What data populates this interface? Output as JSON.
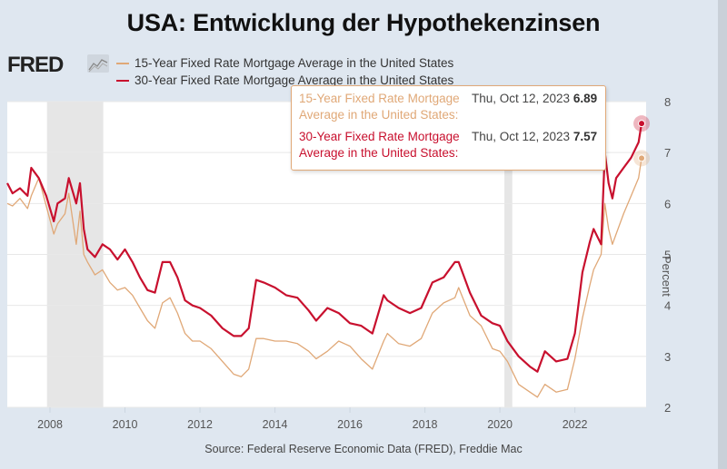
{
  "page_title": "USA: Entwicklung der Hypothekenzinsen",
  "brand": "FRED",
  "source": "Source: Federal Reserve Economic Data (FRED), Freddie Mac",
  "tooltip": {
    "rows": [
      {
        "label": "15-Year Fixed Rate Mortgage Average in the United States:",
        "date": "Thu, Oct 12, 2023",
        "value": "6.89",
        "color": "#e0a877"
      },
      {
        "label": "30-Year Fixed Rate Mortgage Average in the United States:",
        "date": "Thu, Oct 12, 2023",
        "value": "7.57",
        "color": "#c8102e"
      }
    ]
  },
  "chart_data": {
    "type": "line",
    "title": "USA: Entwicklung der Hypothekenzinsen",
    "xlabel": "",
    "ylabel": "Percent",
    "xlim": [
      2006.86,
      2023.9
    ],
    "ylim": [
      2,
      8
    ],
    "x_ticks": [
      "2008",
      "2010",
      "2012",
      "2014",
      "2016",
      "2018",
      "2020",
      "2022"
    ],
    "y_ticks": [
      "2",
      "3",
      "4",
      "5",
      "6",
      "7",
      "8"
    ],
    "grid": true,
    "legend_position": "top-left",
    "recessions": [
      [
        2007.92,
        2009.42
      ],
      [
        2020.12,
        2020.33
      ]
    ],
    "series": [
      {
        "name": "15-Year Fixed Rate Mortgage Average in the United States",
        "color": "#e0a877",
        "x": [
          2006.86,
          2007.0,
          2007.2,
          2007.4,
          2007.5,
          2007.7,
          2007.9,
          2008.1,
          2008.2,
          2008.4,
          2008.5,
          2008.7,
          2008.8,
          2008.9,
          2009.0,
          2009.2,
          2009.4,
          2009.6,
          2009.8,
          2010.0,
          2010.2,
          2010.4,
          2010.6,
          2010.8,
          2011.0,
          2011.2,
          2011.4,
          2011.6,
          2011.8,
          2012.0,
          2012.3,
          2012.6,
          2012.9,
          2013.1,
          2013.3,
          2013.5,
          2013.7,
          2014.0,
          2014.3,
          2014.6,
          2014.9,
          2015.1,
          2015.4,
          2015.7,
          2016.0,
          2016.3,
          2016.6,
          2016.9,
          2017.0,
          2017.3,
          2017.6,
          2017.9,
          2018.2,
          2018.5,
          2018.8,
          2018.9,
          2019.2,
          2019.5,
          2019.8,
          2020.0,
          2020.2,
          2020.5,
          2020.8,
          2021.0,
          2021.2,
          2021.5,
          2021.8,
          2022.0,
          2022.2,
          2022.4,
          2022.5,
          2022.7,
          2022.8,
          2022.9,
          2023.0,
          2023.1,
          2023.3,
          2023.5,
          2023.7,
          2023.78
        ],
        "values": [
          6.0,
          5.95,
          6.1,
          5.9,
          6.15,
          6.5,
          5.95,
          5.4,
          5.6,
          5.8,
          6.2,
          5.2,
          5.85,
          5.0,
          4.85,
          4.6,
          4.7,
          4.45,
          4.3,
          4.35,
          4.2,
          3.95,
          3.7,
          3.55,
          4.05,
          4.15,
          3.85,
          3.45,
          3.3,
          3.3,
          3.15,
          2.9,
          2.65,
          2.6,
          2.75,
          3.35,
          3.35,
          3.3,
          3.3,
          3.25,
          3.1,
          2.95,
          3.1,
          3.3,
          3.2,
          2.95,
          2.75,
          3.3,
          3.45,
          3.25,
          3.2,
          3.35,
          3.85,
          4.05,
          4.15,
          4.35,
          3.8,
          3.6,
          3.15,
          3.1,
          2.9,
          2.45,
          2.3,
          2.2,
          2.45,
          2.3,
          2.35,
          2.95,
          3.75,
          4.4,
          4.7,
          5.0,
          6.0,
          5.5,
          5.2,
          5.4,
          5.8,
          6.15,
          6.5,
          6.89
        ]
      },
      {
        "name": "30-Year Fixed Rate Mortgage Average in the United States",
        "color": "#c8102e",
        "x": [
          2006.86,
          2007.0,
          2007.2,
          2007.4,
          2007.5,
          2007.7,
          2007.9,
          2008.1,
          2008.2,
          2008.4,
          2008.5,
          2008.7,
          2008.8,
          2008.9,
          2009.0,
          2009.2,
          2009.4,
          2009.6,
          2009.8,
          2010.0,
          2010.2,
          2010.4,
          2010.6,
          2010.8,
          2011.0,
          2011.2,
          2011.4,
          2011.6,
          2011.8,
          2012.0,
          2012.3,
          2012.6,
          2012.9,
          2013.1,
          2013.3,
          2013.5,
          2013.7,
          2014.0,
          2014.3,
          2014.6,
          2014.9,
          2015.1,
          2015.4,
          2015.7,
          2016.0,
          2016.3,
          2016.6,
          2016.9,
          2017.0,
          2017.3,
          2017.6,
          2017.9,
          2018.2,
          2018.5,
          2018.8,
          2018.9,
          2019.2,
          2019.5,
          2019.8,
          2020.0,
          2020.2,
          2020.5,
          2020.8,
          2021.0,
          2021.2,
          2021.5,
          2021.8,
          2022.0,
          2022.2,
          2022.4,
          2022.5,
          2022.7,
          2022.8,
          2022.9,
          2023.0,
          2023.1,
          2023.3,
          2023.5,
          2023.7,
          2023.78
        ],
        "values": [
          6.4,
          6.2,
          6.3,
          6.15,
          6.7,
          6.5,
          6.15,
          5.65,
          6.0,
          6.1,
          6.5,
          6.0,
          6.4,
          5.5,
          5.1,
          4.95,
          5.2,
          5.1,
          4.9,
          5.1,
          4.85,
          4.55,
          4.3,
          4.25,
          4.85,
          4.85,
          4.55,
          4.1,
          4.0,
          3.95,
          3.8,
          3.55,
          3.4,
          3.4,
          3.55,
          4.5,
          4.45,
          4.35,
          4.2,
          4.15,
          3.9,
          3.7,
          3.95,
          3.85,
          3.65,
          3.6,
          3.45,
          4.2,
          4.1,
          3.95,
          3.85,
          3.95,
          4.45,
          4.55,
          4.85,
          4.85,
          4.25,
          3.8,
          3.65,
          3.6,
          3.3,
          3.0,
          2.8,
          2.7,
          3.1,
          2.9,
          2.95,
          3.45,
          4.65,
          5.25,
          5.5,
          5.2,
          7.0,
          6.4,
          6.1,
          6.5,
          6.7,
          6.9,
          7.2,
          7.57
        ]
      }
    ]
  }
}
